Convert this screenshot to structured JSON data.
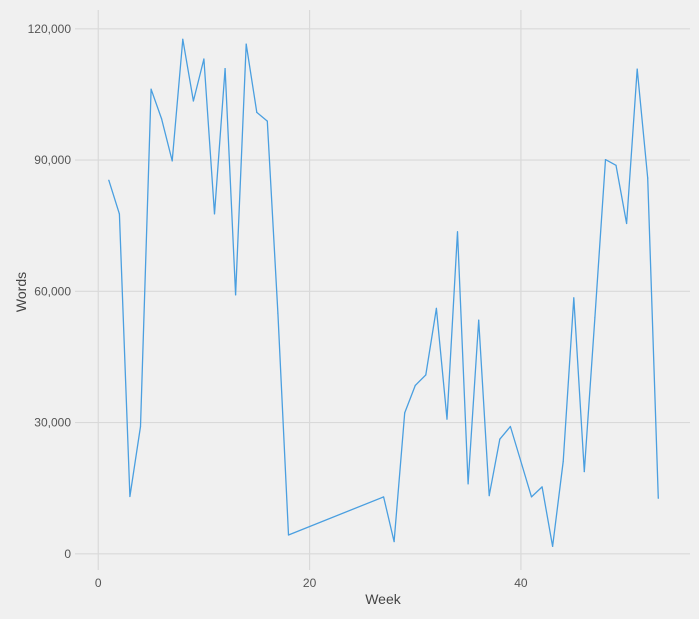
{
  "chart_data": {
    "type": "line",
    "title": "",
    "xlabel": "Week",
    "ylabel": "Words",
    "xlim": [
      -2.2,
      56
    ],
    "ylim": [
      -3700,
      124300
    ],
    "x_ticks": [
      0,
      20,
      40
    ],
    "x_tick_labels": [
      "0",
      "20",
      "40"
    ],
    "y_ticks": [
      0,
      30000,
      60000,
      90000,
      120000
    ],
    "y_tick_labels": [
      "0",
      "30,000",
      "60,000",
      "90,000",
      "120,000"
    ],
    "grid": true,
    "line_color": "#4a9fe0",
    "background": "#f0f0f0",
    "series": [
      {
        "x": [
          1,
          2,
          3,
          4,
          5,
          6,
          7,
          8,
          9,
          10,
          11,
          12,
          13,
          14,
          15,
          16,
          17,
          18,
          27,
          28,
          29,
          30,
          31,
          32,
          33,
          34,
          35,
          36,
          37,
          38,
          39,
          40,
          41,
          42,
          43,
          44,
          45,
          46,
          47,
          48,
          49,
          50,
          51,
          52,
          53
        ],
        "y": [
          85400,
          77700,
          13100,
          29100,
          106200,
          99400,
          89800,
          117600,
          103500,
          113100,
          77700,
          110900,
          59200,
          116500,
          100900,
          98900,
          55000,
          4300,
          13000,
          2800,
          32200,
          38500,
          40900,
          56100,
          30800,
          73600,
          16000,
          53400,
          13300,
          26200,
          29100,
          21100,
          13000,
          15300,
          1700,
          21100,
          58500,
          18800,
          54000,
          90100,
          88800,
          75500,
          110800,
          85900,
          12700
        ]
      }
    ]
  }
}
